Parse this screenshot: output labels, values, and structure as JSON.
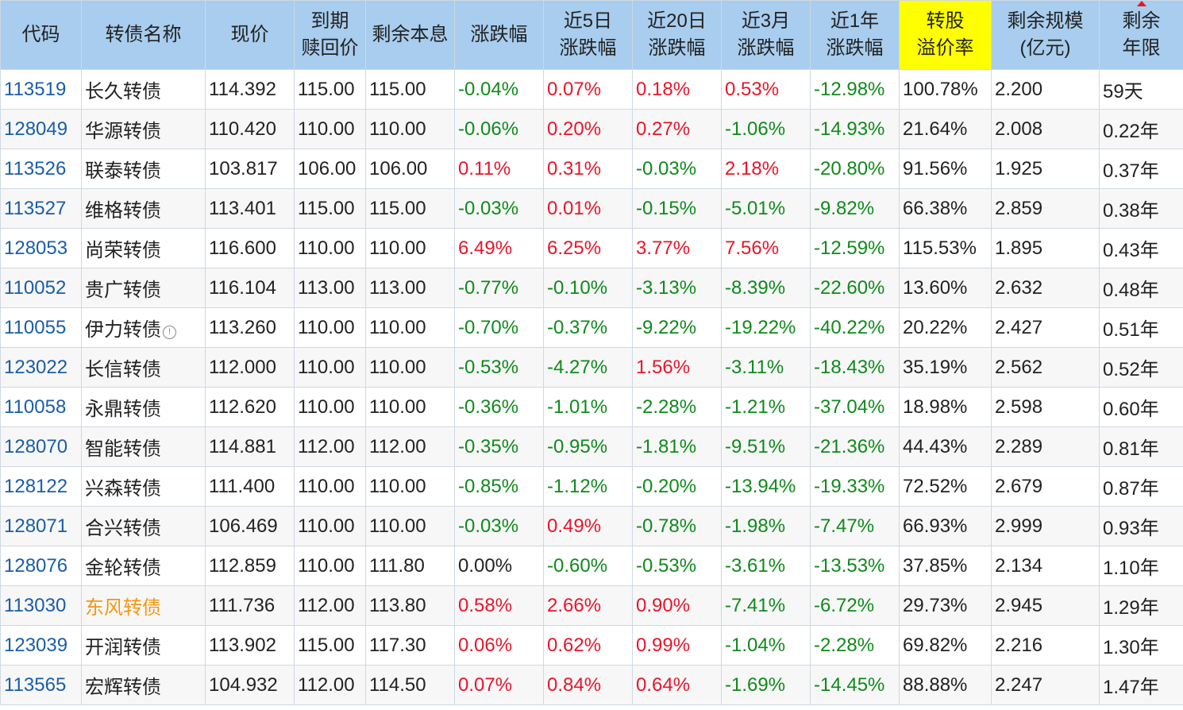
{
  "headers": [
    "代码",
    "转债名称",
    "现价",
    "到期\n赎回价",
    "剩余本息",
    "涨跌幅",
    "近5日\n涨跌幅",
    "近20日\n涨跌幅",
    "近3月\n涨跌幅",
    "近1年\n涨跌幅",
    "转股\n溢价率",
    "剩余规模\n(亿元)",
    "剩余\n年限"
  ],
  "highlight_column": "转股\n溢价率",
  "sorted_column": "剩余\n年限",
  "colors": {
    "header_bg": "#a8cdee",
    "highlight_bg": "#ffff00",
    "up": "#e8152a",
    "down": "#0f8a1c",
    "code": "#1a5da8",
    "name_alt": "#f39712"
  },
  "rows": [
    {
      "code": "113519",
      "name": "长久转债",
      "price": "114.392",
      "redeem": "115.00",
      "remain": "115.00",
      "chg": "-0.04%",
      "chg5": "0.07%",
      "chg20": "0.18%",
      "chg3m": "0.53%",
      "chg1y": "-12.98%",
      "premium": "100.78%",
      "scale": "2.200",
      "years": "59天"
    },
    {
      "code": "128049",
      "name": "华源转债",
      "price": "110.420",
      "redeem": "110.00",
      "remain": "110.00",
      "chg": "-0.06%",
      "chg5": "0.20%",
      "chg20": "0.27%",
      "chg3m": "-1.06%",
      "chg1y": "-14.93%",
      "premium": "21.64%",
      "scale": "2.008",
      "years": "0.22年"
    },
    {
      "code": "113526",
      "name": "联泰转债",
      "price": "103.817",
      "redeem": "106.00",
      "remain": "106.00",
      "chg": "0.11%",
      "chg5": "0.31%",
      "chg20": "-0.03%",
      "chg3m": "2.18%",
      "chg1y": "-20.80%",
      "premium": "91.56%",
      "scale": "1.925",
      "years": "0.37年"
    },
    {
      "code": "113527",
      "name": "维格转债",
      "price": "113.401",
      "redeem": "115.00",
      "remain": "115.00",
      "chg": "-0.03%",
      "chg5": "0.01%",
      "chg20": "-0.15%",
      "chg3m": "-5.01%",
      "chg1y": "-9.82%",
      "premium": "66.38%",
      "scale": "2.859",
      "years": "0.38年"
    },
    {
      "code": "128053",
      "name": "尚荣转债",
      "price": "116.600",
      "redeem": "110.00",
      "remain": "110.00",
      "chg": "6.49%",
      "chg5": "6.25%",
      "chg20": "3.77%",
      "chg3m": "7.56%",
      "chg1y": "-12.59%",
      "premium": "115.53%",
      "scale": "1.895",
      "years": "0.43年"
    },
    {
      "code": "110052",
      "name": "贵广转债",
      "price": "116.104",
      "redeem": "113.00",
      "remain": "113.00",
      "chg": "-0.77%",
      "chg5": "-0.10%",
      "chg20": "-3.13%",
      "chg3m": "-8.39%",
      "chg1y": "-22.60%",
      "premium": "13.60%",
      "scale": "2.632",
      "years": "0.48年"
    },
    {
      "code": "110055",
      "name": "伊力转债",
      "info": true,
      "price": "113.260",
      "redeem": "110.00",
      "remain": "110.00",
      "chg": "-0.70%",
      "chg5": "-0.37%",
      "chg20": "-9.22%",
      "chg3m": "-19.22%",
      "chg1y": "-40.22%",
      "premium": "20.22%",
      "scale": "2.427",
      "years": "0.51年"
    },
    {
      "code": "123022",
      "name": "长信转债",
      "price": "112.000",
      "redeem": "110.00",
      "remain": "110.00",
      "chg": "-0.53%",
      "chg5": "-4.27%",
      "chg20": "1.56%",
      "chg3m": "-3.11%",
      "chg1y": "-18.43%",
      "premium": "35.19%",
      "scale": "2.562",
      "years": "0.52年"
    },
    {
      "code": "110058",
      "name": "永鼎转债",
      "price": "112.620",
      "redeem": "110.00",
      "remain": "110.00",
      "chg": "-0.36%",
      "chg5": "-1.01%",
      "chg20": "-2.28%",
      "chg3m": "-1.21%",
      "chg1y": "-37.04%",
      "premium": "18.98%",
      "scale": "2.598",
      "years": "0.60年"
    },
    {
      "code": "128070",
      "name": "智能转债",
      "price": "114.881",
      "redeem": "112.00",
      "remain": "112.00",
      "chg": "-0.35%",
      "chg5": "-0.95%",
      "chg20": "-1.81%",
      "chg3m": "-9.51%",
      "chg1y": "-21.36%",
      "premium": "44.43%",
      "scale": "2.289",
      "years": "0.81年"
    },
    {
      "code": "128122",
      "name": "兴森转债",
      "price": "111.400",
      "redeem": "110.00",
      "remain": "110.00",
      "chg": "-0.85%",
      "chg5": "-1.12%",
      "chg20": "-0.20%",
      "chg3m": "-13.94%",
      "chg1y": "-19.33%",
      "premium": "72.52%",
      "scale": "2.679",
      "years": "0.87年"
    },
    {
      "code": "128071",
      "name": "合兴转债",
      "price": "106.469",
      "redeem": "110.00",
      "remain": "110.00",
      "chg": "-0.03%",
      "chg5": "0.49%",
      "chg20": "-0.78%",
      "chg3m": "-1.98%",
      "chg1y": "-7.47%",
      "premium": "66.93%",
      "scale": "2.999",
      "years": "0.93年"
    },
    {
      "code": "128076",
      "name": "金轮转债",
      "price": "112.859",
      "redeem": "110.00",
      "remain": "111.80",
      "chg": "0.00%",
      "chg5": "-0.60%",
      "chg20": "-0.53%",
      "chg3m": "-3.61%",
      "chg1y": "-13.53%",
      "premium": "37.85%",
      "scale": "2.134",
      "years": "1.10年"
    },
    {
      "code": "113030",
      "name": "东风转债",
      "name_color": "alt",
      "price": "111.736",
      "redeem": "112.00",
      "remain": "113.80",
      "chg": "0.58%",
      "chg5": "2.66%",
      "chg20": "0.90%",
      "chg3m": "-7.41%",
      "chg1y": "-6.72%",
      "premium": "29.73%",
      "scale": "2.945",
      "years": "1.29年"
    },
    {
      "code": "123039",
      "name": "开润转债",
      "price": "113.902",
      "redeem": "115.00",
      "remain": "117.30",
      "chg": "0.06%",
      "chg5": "0.62%",
      "chg20": "0.99%",
      "chg3m": "-1.04%",
      "chg1y": "-2.28%",
      "premium": "69.82%",
      "scale": "2.216",
      "years": "1.30年"
    },
    {
      "code": "113565",
      "name": "宏辉转债",
      "price": "104.932",
      "redeem": "112.00",
      "remain": "114.50",
      "chg": "0.07%",
      "chg5": "0.84%",
      "chg20": "0.64%",
      "chg3m": "-1.69%",
      "chg1y": "-14.45%",
      "premium": "88.88%",
      "scale": "2.247",
      "years": "1.47年"
    }
  ]
}
